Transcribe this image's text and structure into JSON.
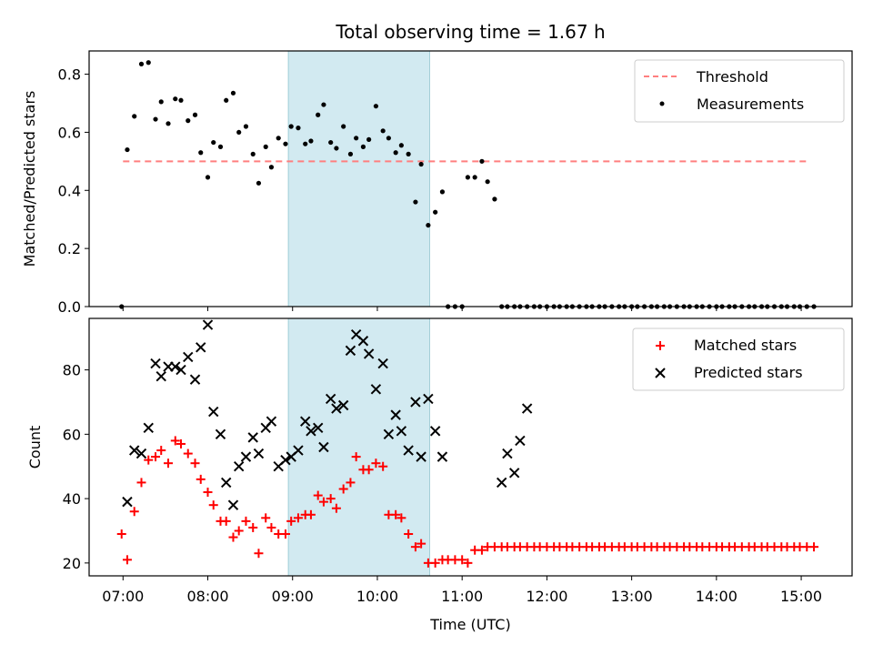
{
  "chart_data": {
    "type": "scatter",
    "title": "Total observing time = 1.67 h",
    "xlabel": "Time (UTC)",
    "shaded_interval": {
      "x_start": "08:57",
      "x_end": "10:37",
      "color": "#add8e6"
    },
    "x_ticks": [
      "07:00",
      "08:00",
      "09:00",
      "10:00",
      "11:00",
      "12:00",
      "13:00",
      "14:00",
      "15:00"
    ],
    "top_panel": {
      "ylabel": "Matched/Predicted stars",
      "ylim": [
        0,
        0.88
      ],
      "y_ticks": [
        "0.0",
        "0.2",
        "0.4",
        "0.6",
        "0.8"
      ],
      "threshold": {
        "name": "Threshold",
        "value": 0.5,
        "x_start": "07:00",
        "x_end": "15:05",
        "color": "#ff7f7f"
      },
      "measurements": {
        "name": "Measurements",
        "color": "#000000",
        "x": [
          "06:59",
          "07:03",
          "07:08",
          "07:13",
          "07:18",
          "07:23",
          "07:27",
          "07:32",
          "07:37",
          "07:41",
          "07:46",
          "07:51",
          "07:55",
          "08:00",
          "08:04",
          "08:09",
          "08:13",
          "08:18",
          "08:22",
          "08:27",
          "08:32",
          "08:36",
          "08:41",
          "08:45",
          "08:50",
          "08:55",
          "08:59",
          "09:04",
          "09:09",
          "09:13",
          "09:18",
          "09:22",
          "09:27",
          "09:31",
          "09:36",
          "09:41",
          "09:45",
          "09:50",
          "09:54",
          "09:59",
          "10:04",
          "10:08",
          "10:13",
          "10:17",
          "10:22",
          "10:27",
          "10:31",
          "10:36",
          "10:41",
          "10:46",
          "10:50",
          "10:55",
          "11:00",
          "11:04",
          "11:09",
          "11:14",
          "11:18",
          "11:23",
          "11:28",
          "11:32",
          "11:37",
          "11:41",
          "11:46",
          "11:51",
          "11:55",
          "12:00",
          "12:05",
          "12:09",
          "12:14",
          "12:18",
          "12:23",
          "12:28",
          "12:32",
          "12:37",
          "12:41",
          "12:46",
          "12:51",
          "12:55",
          "13:00",
          "13:04",
          "13:09",
          "13:14",
          "13:18",
          "13:23",
          "13:27",
          "13:32",
          "13:37",
          "13:41",
          "13:46",
          "13:50",
          "13:55",
          "14:00",
          "14:04",
          "14:09",
          "14:13",
          "14:18",
          "14:23",
          "14:27",
          "14:32",
          "14:36",
          "14:41",
          "14:46",
          "14:50",
          "14:55",
          "14:59",
          "15:04",
          "15:09"
        ],
        "y": [
          0.0,
          0.54,
          0.655,
          0.835,
          0.84,
          0.645,
          0.705,
          0.63,
          0.715,
          0.71,
          0.64,
          0.66,
          0.53,
          0.445,
          0.565,
          0.55,
          0.71,
          0.735,
          0.6,
          0.62,
          0.525,
          0.425,
          0.55,
          0.48,
          0.58,
          0.56,
          0.62,
          0.615,
          0.56,
          0.57,
          0.66,
          0.695,
          0.565,
          0.545,
          0.62,
          0.525,
          0.58,
          0.55,
          0.575,
          0.69,
          0.605,
          0.58,
          0.53,
          0.555,
          0.525,
          0.36,
          0.49,
          0.28,
          0.325,
          0.395,
          0.0,
          0.0,
          0.0,
          0.445,
          0.445,
          0.5,
          0.43,
          0.37,
          0.0,
          0.0,
          0.0,
          0.0,
          0.0,
          0.0,
          0.0,
          0.0,
          0.0,
          0.0,
          0.0,
          0.0,
          0.0,
          0.0,
          0.0,
          0.0,
          0.0,
          0.0,
          0.0,
          0.0,
          0.0,
          0.0,
          0.0,
          0.0,
          0.0,
          0.0,
          0.0,
          0.0,
          0.0,
          0.0,
          0.0,
          0.0,
          0.0,
          0.0,
          0.0,
          0.0,
          0.0,
          0.0,
          0.0,
          0.0,
          0.0,
          0.0,
          0.0,
          0.0,
          0.0,
          0.0,
          0.0,
          0.0,
          0.0
        ]
      },
      "legend": {
        "loc": "upper right",
        "entries": [
          "Threshold",
          "Measurements"
        ]
      }
    },
    "bottom_panel": {
      "ylabel": "Count",
      "ylim": [
        16,
        96
      ],
      "y_ticks": [
        "20",
        "40",
        "60",
        "80"
      ],
      "matched": {
        "name": "Matched stars",
        "color": "#ff0000",
        "marker": "+",
        "x": [
          "06:59",
          "07:03",
          "07:08",
          "07:13",
          "07:18",
          "07:23",
          "07:27",
          "07:32",
          "07:37",
          "07:41",
          "07:46",
          "07:51",
          "07:55",
          "08:00",
          "08:04",
          "08:09",
          "08:13",
          "08:18",
          "08:22",
          "08:27",
          "08:32",
          "08:36",
          "08:41",
          "08:45",
          "08:50",
          "08:55",
          "08:59",
          "09:04",
          "09:09",
          "09:13",
          "09:18",
          "09:22",
          "09:27",
          "09:31",
          "09:36",
          "09:41",
          "09:45",
          "09:50",
          "09:54",
          "09:59",
          "10:04",
          "10:08",
          "10:13",
          "10:17",
          "10:22",
          "10:27",
          "10:31",
          "10:36",
          "10:41",
          "10:46",
          "10:50",
          "10:55",
          "11:00",
          "11:04",
          "11:09",
          "11:14",
          "11:18",
          "11:23",
          "11:28",
          "11:32",
          "11:37",
          "11:41",
          "11:46",
          "11:51",
          "11:55",
          "12:00",
          "12:05",
          "12:09",
          "12:14",
          "12:18",
          "12:23",
          "12:28",
          "12:32",
          "12:37",
          "12:41",
          "12:46",
          "12:51",
          "12:55",
          "13:00",
          "13:04",
          "13:09",
          "13:14",
          "13:18",
          "13:23",
          "13:27",
          "13:32",
          "13:37",
          "13:41",
          "13:46",
          "13:50",
          "13:55",
          "14:00",
          "14:04",
          "14:09",
          "14:13",
          "14:18",
          "14:23",
          "14:27",
          "14:32",
          "14:36",
          "14:41",
          "14:46",
          "14:50",
          "14:55",
          "14:59",
          "15:04",
          "15:09"
        ],
        "y": [
          29,
          21,
          36,
          45,
          52,
          53,
          55,
          51,
          58,
          57,
          54,
          51,
          46,
          42,
          38,
          33,
          33,
          28,
          30,
          33,
          31,
          23,
          34,
          31,
          29,
          29,
          33,
          34,
          35,
          35,
          41,
          39,
          40,
          37,
          43,
          45,
          53,
          49,
          49,
          51,
          50,
          35,
          35,
          34,
          29,
          25,
          26,
          20,
          20,
          21,
          21,
          21,
          21,
          20,
          24,
          24,
          25,
          25,
          25,
          25,
          25,
          25,
          25,
          25,
          25,
          25,
          25,
          25,
          25,
          25,
          25,
          25,
          25,
          25,
          25,
          25,
          25,
          25,
          25,
          25,
          25,
          25,
          25,
          25,
          25,
          25,
          25,
          25,
          25,
          25,
          25,
          25,
          25,
          25,
          25,
          25,
          25,
          25,
          25,
          25,
          25,
          25,
          25,
          25,
          25,
          25,
          25
        ]
      },
      "predicted": {
        "name": "Predicted stars",
        "color": "#000000",
        "marker": "x",
        "x": [
          "07:03",
          "07:08",
          "07:13",
          "07:18",
          "07:23",
          "07:27",
          "07:32",
          "07:37",
          "07:41",
          "07:46",
          "07:51",
          "07:55",
          "08:00",
          "08:04",
          "08:09",
          "08:13",
          "08:18",
          "08:22",
          "08:27",
          "08:32",
          "08:36",
          "08:41",
          "08:45",
          "08:50",
          "08:55",
          "08:59",
          "09:04",
          "09:09",
          "09:13",
          "09:18",
          "09:22",
          "09:27",
          "09:31",
          "09:36",
          "09:41",
          "09:45",
          "09:50",
          "09:54",
          "09:59",
          "10:04",
          "10:08",
          "10:13",
          "10:17",
          "10:22",
          "10:27",
          "10:31",
          "10:36",
          "10:41",
          "10:46",
          "10:50",
          "11:28",
          "11:32",
          "11:37",
          "11:41",
          "11:46"
        ],
        "y": [
          39,
          55,
          54,
          62,
          82,
          78,
          81,
          81,
          80,
          84,
          77,
          87,
          94,
          67,
          60,
          45,
          38,
          50,
          53,
          59,
          54,
          62,
          64,
          50,
          52,
          53,
          55,
          64,
          61,
          62,
          56,
          71,
          68,
          69,
          86,
          91,
          89,
          85,
          74,
          82,
          60,
          66,
          61,
          55,
          70,
          53,
          71,
          61,
          53,
          null,
          45,
          54,
          48,
          58,
          68
        ]
      },
      "legend": {
        "loc": "upper right",
        "entries": [
          "Matched stars",
          "Predicted stars"
        ]
      }
    }
  }
}
